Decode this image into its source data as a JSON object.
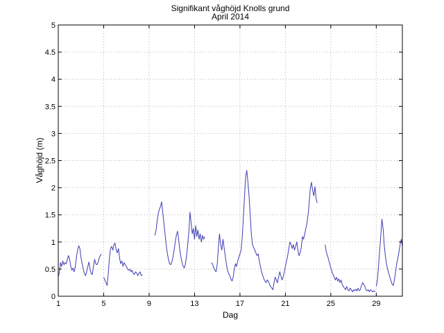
{
  "chart_data": {
    "type": "line",
    "title": "Signifikant våghöjd Knolls grund",
    "subtitle": "April 2014",
    "xlabel": "Dag",
    "ylabel": "Våghöjd (m)",
    "xlim": [
      1,
      31.3
    ],
    "ylim": [
      0,
      5
    ],
    "xticks": [
      1,
      5,
      9,
      13,
      17,
      21,
      25,
      29
    ],
    "yticks": [
      0,
      0.5,
      1,
      1.5,
      2,
      2.5,
      3,
      3.5,
      4,
      4.5,
      5
    ],
    "grid": true,
    "line_color": "#3c3cb4",
    "series": [
      {
        "segments": [
          [
            [
              1.0,
              0.35
            ],
            [
              1.1,
              0.45
            ],
            [
              1.2,
              0.62
            ],
            [
              1.3,
              0.55
            ],
            [
              1.4,
              0.65
            ],
            [
              1.5,
              0.58
            ],
            [
              1.6,
              0.62
            ],
            [
              1.7,
              0.6
            ],
            [
              1.8,
              0.68
            ],
            [
              1.9,
              0.75
            ],
            [
              2.0,
              0.68
            ],
            [
              2.1,
              0.55
            ],
            [
              2.2,
              0.48
            ],
            [
              2.3,
              0.52
            ],
            [
              2.4,
              0.45
            ],
            [
              2.5,
              0.55
            ],
            [
              2.6,
              0.72
            ],
            [
              2.7,
              0.85
            ],
            [
              2.8,
              0.93
            ],
            [
              2.9,
              0.88
            ],
            [
              3.0,
              0.72
            ],
            [
              3.1,
              0.6
            ],
            [
              3.2,
              0.5
            ],
            [
              3.3,
              0.42
            ],
            [
              3.4,
              0.38
            ],
            [
              3.5,
              0.45
            ],
            [
              3.6,
              0.55
            ],
            [
              3.7,
              0.63
            ],
            [
              3.8,
              0.5
            ],
            [
              3.9,
              0.42
            ],
            [
              4.0,
              0.4
            ],
            [
              4.1,
              0.55
            ],
            [
              4.2,
              0.68
            ],
            [
              4.3,
              0.6
            ],
            [
              4.4,
              0.58
            ],
            [
              4.5,
              0.62
            ],
            [
              4.6,
              0.7
            ],
            [
              4.7,
              0.75
            ],
            [
              4.8,
              0.78
            ]
          ],
          [
            [
              5.0,
              0.35
            ],
            [
              5.1,
              0.3
            ],
            [
              5.2,
              0.25
            ],
            [
              5.3,
              0.2
            ],
            [
              5.4,
              0.4
            ],
            [
              5.5,
              0.7
            ],
            [
              5.6,
              0.88
            ],
            [
              5.7,
              0.92
            ],
            [
              5.8,
              0.85
            ],
            [
              5.9,
              0.95
            ],
            [
              6.0,
              0.98
            ],
            [
              6.1,
              0.85
            ],
            [
              6.2,
              0.8
            ],
            [
              6.3,
              0.88
            ],
            [
              6.4,
              0.7
            ],
            [
              6.5,
              0.6
            ],
            [
              6.6,
              0.65
            ],
            [
              6.7,
              0.55
            ],
            [
              6.8,
              0.62
            ],
            [
              6.9,
              0.58
            ],
            [
              7.0,
              0.55
            ],
            [
              7.1,
              0.5
            ],
            [
              7.2,
              0.48
            ],
            [
              7.3,
              0.5
            ],
            [
              7.4,
              0.45
            ],
            [
              7.5,
              0.48
            ],
            [
              7.6,
              0.42
            ],
            [
              7.7,
              0.4
            ],
            [
              7.8,
              0.45
            ],
            [
              7.9,
              0.43
            ],
            [
              8.0,
              0.38
            ],
            [
              8.1,
              0.42
            ],
            [
              8.2,
              0.45
            ],
            [
              8.3,
              0.38
            ],
            [
              8.4,
              0.4
            ]
          ],
          [
            [
              9.5,
              1.12
            ],
            [
              9.6,
              1.2
            ],
            [
              9.7,
              1.38
            ],
            [
              9.8,
              1.52
            ],
            [
              9.9,
              1.6
            ],
            [
              10.0,
              1.65
            ],
            [
              10.1,
              1.74
            ],
            [
              10.2,
              1.55
            ],
            [
              10.3,
              1.35
            ],
            [
              10.4,
              1.15
            ],
            [
              10.5,
              0.95
            ],
            [
              10.6,
              0.8
            ],
            [
              10.7,
              0.68
            ],
            [
              10.8,
              0.6
            ],
            [
              10.9,
              0.58
            ],
            [
              11.0,
              0.63
            ],
            [
              11.1,
              0.72
            ],
            [
              11.2,
              0.85
            ],
            [
              11.3,
              1.0
            ],
            [
              11.4,
              1.12
            ],
            [
              11.5,
              1.2
            ],
            [
              11.6,
              1.05
            ],
            [
              11.7,
              0.85
            ],
            [
              11.8,
              0.72
            ],
            [
              11.9,
              0.62
            ],
            [
              12.0,
              0.55
            ],
            [
              12.1,
              0.52
            ],
            [
              12.2,
              0.6
            ],
            [
              12.3,
              0.75
            ],
            [
              12.4,
              0.95
            ],
            [
              12.5,
              1.2
            ],
            [
              12.6,
              1.55
            ],
            [
              12.7,
              1.35
            ],
            [
              12.8,
              1.15
            ],
            [
              12.9,
              1.25
            ],
            [
              13.0,
              1.05
            ],
            [
              13.1,
              1.3
            ],
            [
              13.2,
              1.1
            ],
            [
              13.3,
              1.22
            ],
            [
              13.4,
              1.05
            ],
            [
              13.5,
              1.15
            ],
            [
              13.6,
              1.0
            ],
            [
              13.7,
              1.12
            ],
            [
              13.8,
              1.05
            ],
            [
              13.9,
              1.1
            ]
          ],
          [
            [
              14.5,
              0.62
            ],
            [
              14.6,
              0.58
            ],
            [
              14.7,
              0.52
            ],
            [
              14.8,
              0.48
            ],
            [
              14.9,
              0.45
            ],
            [
              15.0,
              0.6
            ],
            [
              15.1,
              0.9
            ],
            [
              15.2,
              1.15
            ],
            [
              15.3,
              0.95
            ],
            [
              15.4,
              0.85
            ],
            [
              15.5,
              1.05
            ],
            [
              15.6,
              0.9
            ],
            [
              15.7,
              0.75
            ],
            [
              15.8,
              0.6
            ],
            [
              15.9,
              0.48
            ],
            [
              16.0,
              0.42
            ],
            [
              16.1,
              0.38
            ],
            [
              16.2,
              0.32
            ],
            [
              16.3,
              0.28
            ],
            [
              16.4,
              0.35
            ],
            [
              16.5,
              0.5
            ],
            [
              16.6,
              0.6
            ],
            [
              16.7,
              0.55
            ],
            [
              16.8,
              0.65
            ],
            [
              16.9,
              0.72
            ],
            [
              17.0,
              0.78
            ],
            [
              17.1,
              0.85
            ],
            [
              17.2,
              1.1
            ],
            [
              17.3,
              1.45
            ],
            [
              17.4,
              1.85
            ],
            [
              17.5,
              2.2
            ],
            [
              17.6,
              2.32
            ],
            [
              17.7,
              2.1
            ],
            [
              17.8,
              1.85
            ],
            [
              17.9,
              1.5
            ],
            [
              18.0,
              1.15
            ],
            [
              18.1,
              0.95
            ],
            [
              18.2,
              0.9
            ],
            [
              18.3,
              0.85
            ],
            [
              18.4,
              0.8
            ],
            [
              18.5,
              0.75
            ],
            [
              18.6,
              0.78
            ],
            [
              18.7,
              0.65
            ],
            [
              18.8,
              0.55
            ],
            [
              18.9,
              0.45
            ],
            [
              19.0,
              0.38
            ],
            [
              19.1,
              0.32
            ],
            [
              19.2,
              0.28
            ],
            [
              19.3,
              0.25
            ],
            [
              19.4,
              0.3
            ],
            [
              19.5,
              0.28
            ],
            [
              19.6,
              0.22
            ],
            [
              19.7,
              0.18
            ],
            [
              19.8,
              0.15
            ],
            [
              19.9,
              0.12
            ],
            [
              20.0,
              0.25
            ],
            [
              20.1,
              0.35
            ],
            [
              20.2,
              0.3
            ],
            [
              20.3,
              0.25
            ],
            [
              20.4,
              0.35
            ],
            [
              20.5,
              0.45
            ],
            [
              20.6,
              0.38
            ],
            [
              20.7,
              0.3
            ],
            [
              20.8,
              0.35
            ],
            [
              20.9,
              0.45
            ],
            [
              21.0,
              0.55
            ],
            [
              21.1,
              0.65
            ],
            [
              21.2,
              0.75
            ],
            [
              21.3,
              0.88
            ],
            [
              21.4,
              1.0
            ],
            [
              21.5,
              0.95
            ],
            [
              21.6,
              0.88
            ],
            [
              21.7,
              0.95
            ],
            [
              21.8,
              0.85
            ],
            [
              21.9,
              0.92
            ],
            [
              22.0,
              1.0
            ],
            [
              22.1,
              0.85
            ],
            [
              22.2,
              0.75
            ],
            [
              22.3,
              0.8
            ],
            [
              22.4,
              0.9
            ],
            [
              22.5,
              1.1
            ],
            [
              22.6,
              1.05
            ],
            [
              22.7,
              1.15
            ],
            [
              22.8,
              1.25
            ],
            [
              22.9,
              1.35
            ],
            [
              23.0,
              1.5
            ],
            [
              23.1,
              1.75
            ],
            [
              23.2,
              2.0
            ],
            [
              23.3,
              2.1
            ],
            [
              23.4,
              1.95
            ],
            [
              23.5,
              1.85
            ],
            [
              23.6,
              2.02
            ],
            [
              23.7,
              1.8
            ],
            [
              23.8,
              1.72
            ]
          ],
          [
            [
              24.5,
              0.95
            ],
            [
              24.6,
              0.82
            ],
            [
              24.7,
              0.75
            ],
            [
              24.8,
              0.68
            ],
            [
              24.9,
              0.6
            ],
            [
              25.0,
              0.52
            ],
            [
              25.1,
              0.45
            ],
            [
              25.2,
              0.4
            ],
            [
              25.3,
              0.35
            ],
            [
              25.4,
              0.3
            ],
            [
              25.5,
              0.35
            ],
            [
              25.6,
              0.28
            ],
            [
              25.7,
              0.32
            ],
            [
              25.8,
              0.25
            ],
            [
              25.9,
              0.3
            ],
            [
              26.0,
              0.22
            ],
            [
              26.1,
              0.18
            ],
            [
              26.2,
              0.15
            ],
            [
              26.3,
              0.12
            ],
            [
              26.4,
              0.18
            ],
            [
              26.5,
              0.12
            ],
            [
              26.6,
              0.1
            ],
            [
              26.7,
              0.15
            ],
            [
              26.8,
              0.12
            ],
            [
              26.9,
              0.08
            ],
            [
              27.0,
              0.12
            ],
            [
              27.1,
              0.1
            ],
            [
              27.2,
              0.13
            ],
            [
              27.3,
              0.1
            ],
            [
              27.4,
              0.15
            ],
            [
              27.5,
              0.1
            ],
            [
              27.6,
              0.12
            ],
            [
              27.7,
              0.2
            ],
            [
              27.8,
              0.25
            ],
            [
              27.9,
              0.22
            ],
            [
              28.0,
              0.18
            ],
            [
              28.1,
              0.12
            ],
            [
              28.2,
              0.1
            ],
            [
              28.3,
              0.12
            ],
            [
              28.4,
              0.08
            ],
            [
              28.5,
              0.12
            ],
            [
              28.6,
              0.1
            ],
            [
              28.7,
              0.08
            ],
            [
              28.8,
              0.1
            ],
            [
              28.9,
              0.08
            ]
          ],
          [
            [
              29.0,
              0.18
            ],
            [
              29.1,
              0.3
            ],
            [
              29.2,
              0.55
            ],
            [
              29.3,
              0.85
            ],
            [
              29.4,
              1.12
            ],
            [
              29.5,
              1.42
            ],
            [
              29.6,
              1.25
            ],
            [
              29.7,
              0.95
            ],
            [
              29.8,
              0.75
            ],
            [
              29.9,
              0.6
            ],
            [
              30.0,
              0.5
            ],
            [
              30.1,
              0.42
            ],
            [
              30.2,
              0.35
            ],
            [
              30.3,
              0.28
            ],
            [
              30.4,
              0.22
            ],
            [
              30.5,
              0.2
            ],
            [
              30.6,
              0.3
            ],
            [
              30.7,
              0.45
            ],
            [
              30.8,
              0.6
            ],
            [
              30.9,
              0.7
            ],
            [
              31.0,
              0.82
            ],
            [
              31.1,
              0.95
            ],
            [
              31.2,
              1.05
            ],
            [
              31.3,
              0.92
            ]
          ]
        ]
      }
    ]
  }
}
